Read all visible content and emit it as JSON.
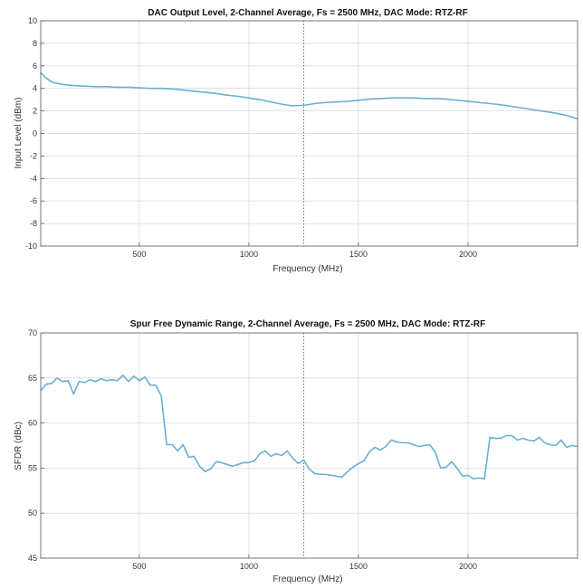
{
  "colors": {
    "line": "#6aaed6",
    "grid": "#d9d9d9",
    "axis": "#555555",
    "marker": "#555555"
  },
  "chart_data": [
    {
      "type": "line",
      "title": "DAC Output Level, 2-Channel Average, Fs = 2500 MHz, DAC Mode: RTZ-RF",
      "xlabel": "Frequency (MHz)",
      "ylabel": "Input Level (dBm)",
      "xlim": [
        50,
        2500
      ],
      "ylim": [
        -10,
        10
      ],
      "xticks": [
        500,
        1000,
        1500,
        2000
      ],
      "yticks": [
        -10,
        -8,
        -6,
        -4,
        -2,
        0,
        2,
        4,
        6,
        8,
        10
      ],
      "grid": true,
      "vline_x": 1250,
      "series": [
        {
          "x": [
            50,
            70,
            90,
            110,
            150,
            200,
            250,
            300,
            350,
            400,
            450,
            500,
            550,
            600,
            650,
            700,
            750,
            800,
            850,
            900,
            950,
            1000,
            1050,
            1100,
            1150,
            1200,
            1250,
            1300,
            1350,
            1400,
            1450,
            1500,
            1550,
            1600,
            1650,
            1700,
            1750,
            1800,
            1850,
            1900,
            1950,
            2000,
            2050,
            2100,
            2150,
            2200,
            2250,
            2300,
            2350,
            2400,
            2450,
            2500
          ],
          "y": [
            5.4,
            5.0,
            4.7,
            4.5,
            4.35,
            4.25,
            4.2,
            4.15,
            4.15,
            4.1,
            4.1,
            4.05,
            4.0,
            4.0,
            3.95,
            3.85,
            3.75,
            3.65,
            3.55,
            3.4,
            3.3,
            3.15,
            3.0,
            2.8,
            2.6,
            2.45,
            2.5,
            2.65,
            2.75,
            2.8,
            2.85,
            2.95,
            3.05,
            3.1,
            3.15,
            3.15,
            3.15,
            3.1,
            3.1,
            3.05,
            2.95,
            2.85,
            2.75,
            2.65,
            2.55,
            2.4,
            2.25,
            2.1,
            1.95,
            1.8,
            1.6,
            1.3
          ]
        }
      ]
    },
    {
      "type": "line",
      "title": "Spur Free Dynamic Range, 2-Channel Average, Fs = 2500 MHz, DAC Mode: RTZ-RF",
      "xlabel": "Frequency (MHz)",
      "ylabel": "SFDR (dBc)",
      "xlim": [
        50,
        2500
      ],
      "ylim": [
        45,
        70
      ],
      "xticks": [
        500,
        1000,
        1500,
        2000
      ],
      "yticks": [
        45,
        50,
        55,
        60,
        65,
        70
      ],
      "grid": true,
      "vline_x": 1250,
      "series": [
        {
          "x": [
            50,
            75,
            100,
            125,
            150,
            175,
            200,
            225,
            250,
            275,
            300,
            325,
            350,
            375,
            400,
            425,
            450,
            475,
            500,
            525,
            550,
            575,
            600,
            625,
            650,
            675,
            700,
            725,
            750,
            775,
            800,
            825,
            850,
            875,
            900,
            925,
            950,
            975,
            1000,
            1025,
            1050,
            1075,
            1100,
            1125,
            1150,
            1175,
            1200,
            1225,
            1250,
            1275,
            1300,
            1325,
            1350,
            1375,
            1400,
            1425,
            1450,
            1475,
            1500,
            1525,
            1550,
            1575,
            1600,
            1625,
            1650,
            1675,
            1700,
            1725,
            1750,
            1775,
            1800,
            1825,
            1850,
            1875,
            1900,
            1925,
            1950,
            1975,
            2000,
            2025,
            2050,
            2075,
            2100,
            2125,
            2150,
            2175,
            2200,
            2225,
            2250,
            2275,
            2300,
            2325,
            2350,
            2375,
            2400,
            2425,
            2450,
            2475,
            2500
          ],
          "y": [
            63.6,
            64.3,
            64.4,
            65.0,
            64.6,
            64.7,
            63.2,
            64.6,
            64.5,
            64.8,
            64.6,
            64.9,
            64.7,
            64.8,
            64.7,
            65.3,
            64.6,
            65.2,
            64.7,
            65.1,
            64.2,
            64.2,
            63.0,
            57.6,
            57.6,
            56.9,
            57.6,
            56.2,
            56.3,
            55.2,
            54.6,
            54.9,
            55.7,
            55.6,
            55.4,
            55.2,
            55.4,
            55.6,
            55.6,
            55.8,
            56.6,
            56.9,
            56.3,
            56.6,
            56.4,
            56.9,
            56.1,
            55.5,
            55.9,
            54.9,
            54.4,
            54.3,
            54.3,
            54.2,
            54.1,
            54.0,
            54.6,
            55.1,
            55.5,
            55.8,
            56.8,
            57.3,
            57.0,
            57.4,
            58.1,
            57.9,
            57.8,
            57.8,
            57.6,
            57.4,
            57.5,
            57.6,
            56.8,
            55.0,
            55.1,
            55.7,
            55.0,
            54.1,
            54.2,
            53.8,
            53.9,
            53.8,
            58.4,
            58.3,
            58.3,
            58.6,
            58.6,
            58.1,
            58.3,
            58.1,
            58.0,
            58.4,
            57.8,
            57.6,
            57.5,
            58.1,
            57.3,
            57.5,
            57.4
          ]
        }
      ]
    }
  ]
}
